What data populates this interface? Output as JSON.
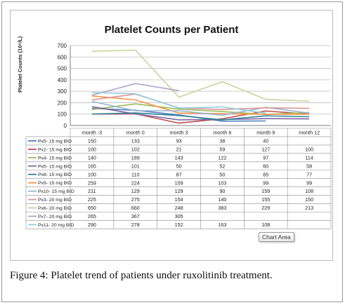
{
  "chart_data": {
    "type": "line",
    "title": "Platelet Counts per Patient",
    "ylabel": "Platelet Counts (10⁹/L)",
    "ylim": [
      0,
      700
    ],
    "yticks": [
      0,
      100,
      200,
      300,
      400,
      500,
      600,
      700
    ],
    "grid": true,
    "categories": [
      "month -3",
      "month 0",
      "month 3",
      "month 6",
      "month 9",
      "month 12"
    ],
    "series": [
      {
        "name": "Px5- 15 mg BID",
        "color": "#4f81bd",
        "values": [
          150,
          133,
          93,
          38,
          40,
          null
        ]
      },
      {
        "name": "Px2- 15 mg BID",
        "color": "#c0504d",
        "values": [
          100,
          102,
          21,
          59,
          127,
          100
        ]
      },
      {
        "name": "Px4- 15 mg BID",
        "color": "#9bbb59",
        "values": [
          140,
          189,
          143,
          122,
          97,
          114
        ]
      },
      {
        "name": "Px5- 15 mg BID",
        "color": "#8064a2",
        "values": [
          165,
          101,
          50,
          52,
          60,
          58
        ]
      },
      {
        "name": "Px8- 15 mg BID",
        "color": "#31859c",
        "values": [
          100,
          110,
          87,
          50,
          85,
          77
        ]
      },
      {
        "name": "Px9- 15 mg BID",
        "color": "#f79646",
        "values": [
          259,
          224,
          109,
          103,
          99,
          99
        ]
      },
      {
        "name": "Px10- 15 mg BID",
        "color": "#95b3d7",
        "values": [
          211,
          129,
          129,
          90,
          159,
          108
        ]
      },
      {
        "name": "Px3- 20 mg BID",
        "color": "#d99694",
        "values": [
          225,
          275,
          154,
          140,
          155,
          150
        ]
      },
      {
        "name": "Px6- 20 mg BID",
        "color": "#c3d69b",
        "values": [
          650,
          660,
          248,
          383,
          229,
          213
        ]
      },
      {
        "name": "Px7- 20 mg BID",
        "color": "#b3a2c7",
        "values": [
          265,
          367,
          305,
          null,
          null,
          null
        ]
      },
      {
        "name": "Px11- 20 mg BID",
        "color": "#93cddd",
        "values": [
          290,
          278,
          152,
          163,
          108,
          null
        ]
      }
    ]
  },
  "tooltip": "Chart Area",
  "caption": {
    "label": "Figure 4:",
    "text": " Platelet trend of patients under ruxolitinib treatment."
  }
}
